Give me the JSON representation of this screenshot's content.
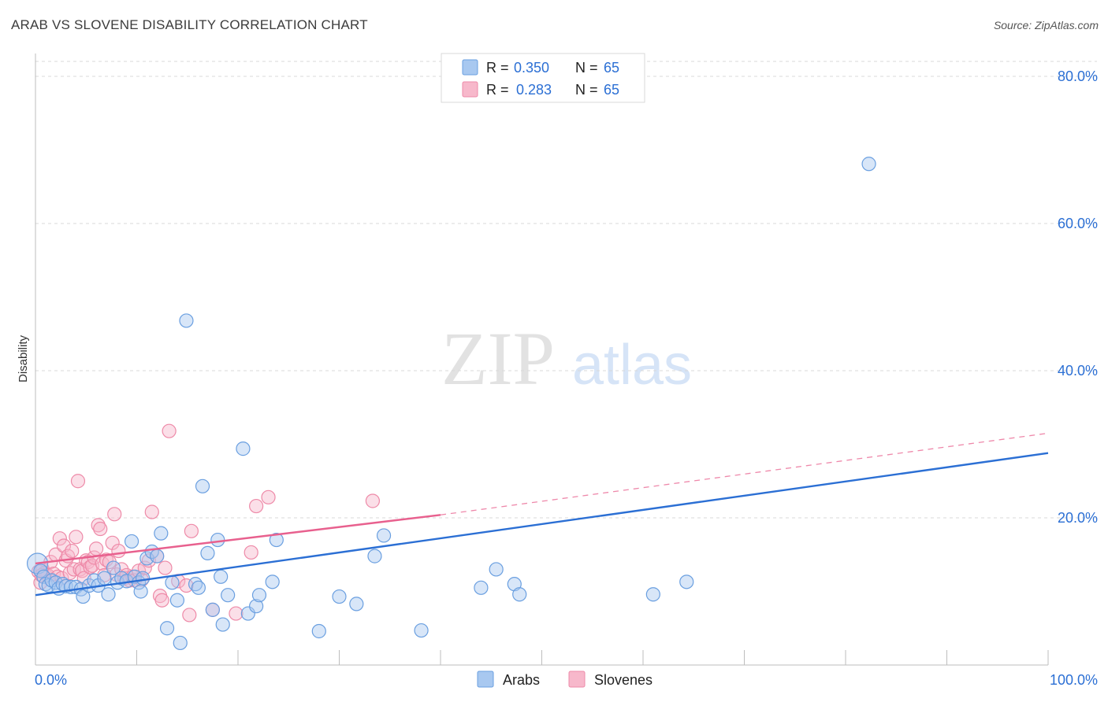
{
  "title": "ARAB VS SLOVENE DISABILITY CORRELATION CHART",
  "source": "Source: ZipAtlas.com",
  "watermark": {
    "zip": "ZIP",
    "atlas": "atlas"
  },
  "legend_top": [
    {
      "r_label": "R = ",
      "r_value": "0.350",
      "n_label": "N = ",
      "n_value": "65"
    },
    {
      "r_label": "R = ",
      "r_value": "0.283",
      "n_label": "N = ",
      "n_value": "65"
    }
  ],
  "legend_bottom": [
    "Arabs",
    "Slovenes"
  ],
  "colors": {
    "arab_fill": "#a8c8f0",
    "arab_stroke": "#6a9fe0",
    "arab_line": "#2b6fd4",
    "slovene_fill": "#f7b8cb",
    "slovene_stroke": "#ee8aa8",
    "slovene_line": "#e8608e",
    "value_text": "#2b6fd4",
    "grid": "#d8d8d8"
  },
  "chart_data": {
    "type": "scatter",
    "title": "ARAB VS SLOVENE DISABILITY CORRELATION CHART",
    "xlabel": "",
    "ylabel": "Disability",
    "xlim": [
      0,
      100
    ],
    "ylim": [
      0,
      80
    ],
    "x_tick_labels": [
      "0.0%",
      "100.0%"
    ],
    "y_ticks": [
      20,
      40,
      60,
      80
    ],
    "y_tick_labels": [
      "20.0%",
      "40.0%",
      "60.0%",
      "80.0%"
    ],
    "legend_position": "top-center",
    "series": [
      {
        "name": "Arabs",
        "R": 0.35,
        "N": 65,
        "trend": {
          "x": [
            0,
            100
          ],
          "y": [
            9.5,
            28.8
          ],
          "style": "solid"
        },
        "points": [
          [
            0.2,
            13.8
          ],
          [
            0.5,
            12.8
          ],
          [
            0.8,
            12.0
          ],
          [
            1.0,
            11.0
          ],
          [
            1.3,
            10.8
          ],
          [
            1.6,
            11.5
          ],
          [
            2.0,
            11.2
          ],
          [
            2.3,
            10.4
          ],
          [
            2.7,
            11.0
          ],
          [
            3.0,
            10.7
          ],
          [
            3.5,
            10.6
          ],
          [
            4.0,
            10.6
          ],
          [
            4.5,
            10.3
          ],
          [
            4.7,
            9.3
          ],
          [
            5.3,
            10.8
          ],
          [
            5.8,
            11.5
          ],
          [
            6.2,
            10.8
          ],
          [
            6.8,
            11.8
          ],
          [
            7.2,
            9.6
          ],
          [
            7.7,
            13.2
          ],
          [
            8.1,
            11.2
          ],
          [
            8.5,
            11.8
          ],
          [
            9.0,
            11.4
          ],
          [
            9.5,
            16.8
          ],
          [
            9.8,
            12.0
          ],
          [
            10.2,
            11.2
          ],
          [
            10.4,
            10.0
          ],
          [
            10.6,
            11.8
          ],
          [
            11.0,
            14.5
          ],
          [
            11.5,
            15.4
          ],
          [
            12.0,
            14.8
          ],
          [
            12.4,
            17.9
          ],
          [
            13.0,
            5.0
          ],
          [
            13.5,
            11.2
          ],
          [
            14.0,
            8.8
          ],
          [
            14.3,
            3.0
          ],
          [
            14.9,
            46.8
          ],
          [
            15.8,
            11.0
          ],
          [
            16.1,
            10.5
          ],
          [
            16.5,
            24.3
          ],
          [
            17.0,
            15.2
          ],
          [
            17.5,
            7.5
          ],
          [
            18.0,
            17.0
          ],
          [
            18.3,
            12.0
          ],
          [
            18.5,
            5.5
          ],
          [
            19.0,
            9.5
          ],
          [
            20.5,
            29.4
          ],
          [
            21.0,
            7.0
          ],
          [
            21.8,
            8.0
          ],
          [
            22.1,
            9.5
          ],
          [
            23.4,
            11.3
          ],
          [
            23.8,
            17.0
          ],
          [
            28.0,
            4.6
          ],
          [
            30.0,
            9.3
          ],
          [
            31.7,
            8.3
          ],
          [
            33.5,
            14.8
          ],
          [
            34.4,
            17.6
          ],
          [
            38.1,
            4.7
          ],
          [
            44.0,
            10.5
          ],
          [
            45.5,
            13.0
          ],
          [
            47.3,
            11.0
          ],
          [
            47.8,
            9.6
          ],
          [
            61.0,
            9.6
          ],
          [
            64.3,
            11.3
          ],
          [
            82.3,
            68.1
          ]
        ]
      },
      {
        "name": "Slovenes",
        "R": 0.283,
        "N": 65,
        "trend_solid": {
          "x": [
            0,
            40
          ],
          "y": [
            13.8,
            20.4
          ],
          "style": "solid"
        },
        "trend_dashed": {
          "x": [
            40,
            100
          ],
          "y": [
            20.4,
            31.5
          ],
          "style": "dashed"
        },
        "points": [
          [
            0.3,
            12.7
          ],
          [
            0.5,
            11.2
          ],
          [
            0.7,
            13.0
          ],
          [
            0.9,
            12.5
          ],
          [
            1.2,
            12.2
          ],
          [
            1.5,
            14.0
          ],
          [
            1.8,
            12.4
          ],
          [
            2.0,
            15.0
          ],
          [
            2.2,
            12.0
          ],
          [
            2.4,
            17.2
          ],
          [
            2.6,
            11.8
          ],
          [
            2.8,
            16.2
          ],
          [
            3.0,
            14.2
          ],
          [
            3.2,
            14.8
          ],
          [
            3.4,
            12.5
          ],
          [
            3.6,
            15.5
          ],
          [
            3.8,
            13.0
          ],
          [
            4.0,
            17.4
          ],
          [
            4.2,
            25.0
          ],
          [
            4.4,
            13.0
          ],
          [
            4.6,
            12.8
          ],
          [
            4.8,
            11.8
          ],
          [
            5.0,
            14.2
          ],
          [
            5.2,
            14.0
          ],
          [
            5.4,
            13.3
          ],
          [
            5.6,
            13.5
          ],
          [
            5.8,
            14.6
          ],
          [
            6.0,
            15.8
          ],
          [
            6.2,
            19.0
          ],
          [
            6.4,
            18.5
          ],
          [
            6.6,
            13.8
          ],
          [
            6.8,
            12.2
          ],
          [
            7.0,
            14.3
          ],
          [
            7.3,
            14.0
          ],
          [
            7.6,
            16.6
          ],
          [
            7.8,
            20.5
          ],
          [
            8.0,
            12.3
          ],
          [
            8.2,
            15.5
          ],
          [
            8.5,
            13.0
          ],
          [
            8.8,
            11.8
          ],
          [
            9.0,
            12.2
          ],
          [
            9.3,
            11.5
          ],
          [
            9.6,
            12.0
          ],
          [
            9.8,
            11.5
          ],
          [
            10.2,
            12.8
          ],
          [
            10.5,
            11.6
          ],
          [
            10.8,
            13.2
          ],
          [
            11.2,
            14.2
          ],
          [
            11.5,
            20.8
          ],
          [
            12.0,
            14.8
          ],
          [
            12.3,
            9.4
          ],
          [
            12.5,
            8.8
          ],
          [
            12.8,
            13.2
          ],
          [
            13.2,
            31.8
          ],
          [
            14.1,
            11.4
          ],
          [
            14.9,
            10.8
          ],
          [
            15.2,
            6.8
          ],
          [
            15.4,
            18.2
          ],
          [
            17.5,
            7.5
          ],
          [
            19.8,
            7.0
          ],
          [
            21.3,
            15.3
          ],
          [
            21.8,
            21.6
          ],
          [
            23.0,
            22.8
          ],
          [
            33.3,
            22.3
          ],
          [
            0.6,
            12.2
          ]
        ]
      }
    ]
  }
}
